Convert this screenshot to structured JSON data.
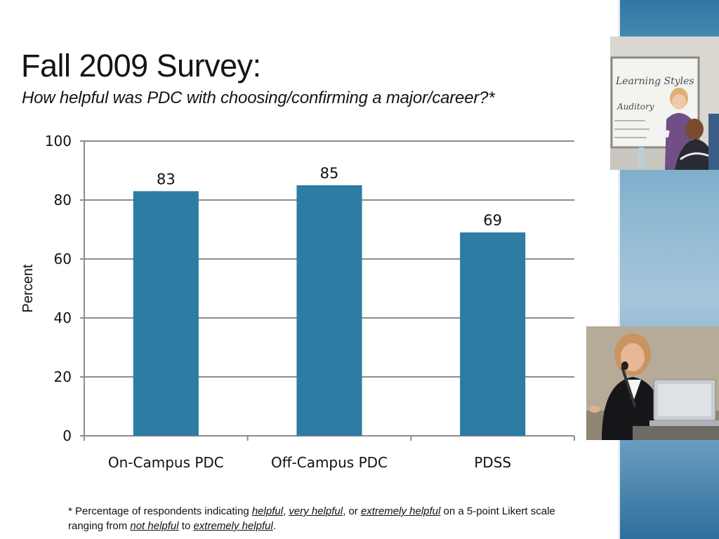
{
  "slide": {
    "title": "Fall 2009 Survey:",
    "subtitle": "How helpful was PDC with choosing/confirming a major/career?*"
  },
  "footnote": {
    "part1": "* Percentage of respondents indicating ",
    "term1": "helpful",
    "sep1": ", ",
    "term2": "very helpful",
    "sep2": ", or ",
    "term3": "extremely helpful",
    "part2": " on a 5-point Likert scale ranging from ",
    "term4": "not helpful",
    "part3": " to ",
    "term5": "extremely helpful",
    "part4": "."
  },
  "colors": {
    "bar": "#2e7ba4",
    "grid": "#8c8c8c",
    "sidebar": "#4d8fba"
  },
  "chart_data": {
    "type": "bar",
    "categories": [
      "On-Campus PDC",
      "Off-Campus PDC",
      "PDSS"
    ],
    "values": [
      83,
      85,
      69
    ],
    "title": "",
    "xlabel": "",
    "ylabel": "Percent",
    "ylim": [
      0,
      100
    ],
    "yticks": [
      0,
      20,
      40,
      60,
      80,
      100
    ],
    "grid": true,
    "data_labels": true
  },
  "images": {
    "classroom": "classroom-photo",
    "speaker": "speaker-photo"
  }
}
